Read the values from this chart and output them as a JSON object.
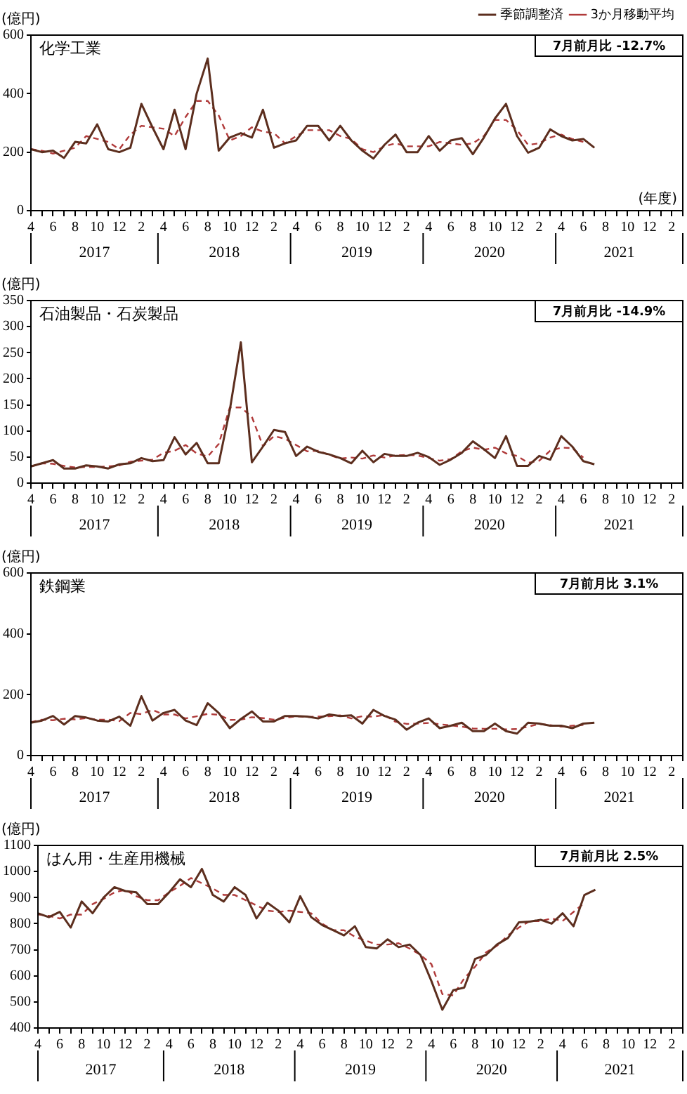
{
  "chart_data": [
    {
      "type": "line",
      "title": "化学工業",
      "ylabel": "(億円)",
      "xlabel": "(年度)",
      "legend": "top right",
      "ylim": [
        0,
        600
      ],
      "yticks": [
        0,
        200,
        400,
        600
      ],
      "categories": [
        "4",
        null,
        "6",
        null,
        "8",
        null,
        "10",
        null,
        "12",
        null,
        "2",
        null,
        "4",
        null,
        "6",
        null,
        "8",
        null,
        "10",
        null,
        "12",
        null,
        "2",
        null,
        "4",
        null,
        "6",
        null,
        "8",
        null,
        "10",
        null,
        "12",
        null,
        "2",
        null,
        "4",
        null,
        "6",
        null,
        "8",
        null,
        "10",
        null,
        "12",
        null,
        "2",
        null,
        "4",
        null,
        "6",
        null,
        "8",
        null,
        "10",
        null,
        "12",
        null,
        "2",
        null
      ],
      "annotations": [
        "7月前月比 -12.7%",
        "2017",
        "2018",
        "2019",
        "2020",
        "2021"
      ],
      "series": [
        {
          "name": "季節調整済",
          "color": "#5c2e1e",
          "line_style": "solid",
          "values": [
            210,
            200,
            205,
            180,
            235,
            230,
            295,
            210,
            200,
            215,
            365,
            285,
            210,
            345,
            210,
            400,
            520,
            205,
            250,
            265,
            250,
            345,
            215,
            230,
            240,
            290,
            290,
            240,
            290,
            240,
            205,
            178,
            225,
            260,
            200,
            200,
            255,
            205,
            240,
            248,
            193,
            250,
            315,
            365,
            255,
            198,
            215,
            278,
            255,
            240,
            245,
            215,
            null,
            null,
            null,
            null,
            null,
            null,
            null,
            null
          ]
        },
        {
          "name": "3か月移動平均",
          "color": "#b03a3a",
          "line_style": "dashed",
          "values": [
            210,
            205,
            195,
            205,
            215,
            255,
            245,
            235,
            210,
            260,
            290,
            285,
            280,
            255,
            320,
            375,
            375,
            325,
            240,
            255,
            285,
            270,
            265,
            230,
            255,
            275,
            275,
            275,
            255,
            245,
            210,
            200,
            220,
            230,
            220,
            220,
            220,
            235,
            230,
            225,
            230,
            255,
            310,
            310,
            275,
            225,
            230,
            250,
            260,
            245,
            235,
            null,
            null,
            null,
            null,
            null,
            null,
            null,
            null,
            null
          ]
        }
      ]
    },
    {
      "type": "line",
      "title": "石油製品・石炭製品",
      "ylabel": "(億円)",
      "ylim": [
        0,
        350
      ],
      "yticks": [
        0,
        50,
        100,
        150,
        200,
        250,
        300,
        350
      ],
      "categories": [
        "4",
        null,
        "6",
        null,
        "8",
        null,
        "10",
        null,
        "12",
        null,
        "2",
        null,
        "4",
        null,
        "6",
        null,
        "8",
        null,
        "10",
        null,
        "12",
        null,
        "2",
        null,
        "4",
        null,
        "6",
        null,
        "8",
        null,
        "10",
        null,
        "12",
        null,
        "2",
        null,
        "4",
        null,
        "6",
        null,
        "8",
        null,
        "10",
        null,
        "12",
        null,
        "2",
        null,
        "4",
        null,
        "6",
        null,
        "8",
        null,
        "10",
        null,
        "12",
        null,
        "2",
        null
      ],
      "annotations": [
        "7月前月比 -14.9%",
        "2017",
        "2018",
        "2019",
        "2020",
        "2021"
      ],
      "series": [
        {
          "color": "#5c2e1e",
          "line_style": "solid",
          "values": [
            32,
            38,
            44,
            28,
            28,
            34,
            32,
            28,
            36,
            38,
            48,
            42,
            44,
            88,
            55,
            77,
            38,
            38,
            140,
            270,
            40,
            70,
            102,
            98,
            52,
            70,
            60,
            55,
            48,
            38,
            62,
            40,
            56,
            52,
            52,
            58,
            50,
            35,
            45,
            58,
            80,
            65,
            48,
            90,
            33,
            33,
            52,
            45,
            90,
            70,
            42,
            36,
            null,
            null,
            null,
            null,
            null,
            null,
            null,
            null
          ]
        },
        {
          "color": "#b03a3a",
          "line_style": "dashed",
          "values": [
            32,
            38,
            37,
            33,
            30,
            31,
            31,
            32,
            34,
            41,
            43,
            45,
            58,
            62,
            73,
            57,
            51,
            75,
            145,
            145,
            127,
            71,
            90,
            85,
            73,
            61,
            62,
            54,
            47,
            49,
            47,
            53,
            49,
            53,
            54,
            53,
            48,
            43,
            46,
            61,
            68,
            64,
            68,
            57,
            52,
            39,
            43,
            62,
            68,
            67,
            49,
            null,
            null,
            null,
            null,
            null,
            null,
            null,
            null,
            null
          ]
        }
      ]
    },
    {
      "type": "line",
      "title": "鉄鋼業",
      "ylabel": "(億円)",
      "ylim": [
        0,
        600
      ],
      "yticks": [
        0,
        200,
        400,
        600
      ],
      "categories": [
        "4",
        null,
        "6",
        null,
        "8",
        null,
        "10",
        null,
        "12",
        null,
        "2",
        null,
        "4",
        null,
        "6",
        null,
        "8",
        null,
        "10",
        null,
        "12",
        null,
        "2",
        null,
        "4",
        null,
        "6",
        null,
        "8",
        null,
        "10",
        null,
        "12",
        null,
        "2",
        null,
        "4",
        null,
        "6",
        null,
        "8",
        null,
        "10",
        null,
        "12",
        null,
        "2",
        null,
        "4",
        null,
        "6",
        null,
        "8",
        null,
        "10",
        null,
        "12",
        null,
        "2",
        null
      ],
      "annotations": [
        "7月前月比 3.1%",
        "2017",
        "2018",
        "2019",
        "2020",
        "2021"
      ],
      "series": [
        {
          "color": "#5c2e1e",
          "line_style": "solid",
          "values": [
            108,
            115,
            130,
            102,
            130,
            125,
            115,
            112,
            128,
            98,
            195,
            115,
            140,
            150,
            115,
            100,
            172,
            140,
            90,
            120,
            145,
            112,
            112,
            130,
            130,
            128,
            122,
            135,
            130,
            132,
            105,
            150,
            130,
            118,
            85,
            108,
            122,
            90,
            98,
            108,
            80,
            80,
            105,
            80,
            72,
            108,
            105,
            98,
            98,
            90,
            105,
            108,
            null,
            null,
            null,
            null,
            null,
            null,
            null,
            null
          ]
        },
        {
          "color": "#b03a3a",
          "line_style": "dashed",
          "values": [
            110,
            118,
            116,
            121,
            119,
            123,
            118,
            118,
            113,
            140,
            136,
            150,
            135,
            135,
            122,
            129,
            137,
            134,
            117,
            118,
            126,
            123,
            118,
            124,
            129,
            127,
            128,
            129,
            132,
            122,
            129,
            128,
            133,
            111,
            104,
            105,
            107,
            103,
            99,
            95,
            89,
            88,
            88,
            86,
            87,
            95,
            104,
            100,
            95,
            98,
            101,
            null,
            null,
            null,
            null,
            null,
            null,
            null,
            null,
            null
          ]
        }
      ]
    },
    {
      "type": "line",
      "title": "はん用・生産用機械",
      "ylabel": "(億円)",
      "ylim": [
        400,
        1100
      ],
      "yticks": [
        400,
        500,
        600,
        700,
        800,
        900,
        1000,
        1100
      ],
      "categories": [
        "4",
        null,
        "6",
        null,
        "8",
        null,
        "10",
        null,
        "12",
        null,
        "2",
        null,
        "4",
        null,
        "6",
        null,
        "8",
        null,
        "10",
        null,
        "12",
        null,
        "2",
        null,
        "4",
        null,
        "6",
        null,
        "8",
        null,
        "10",
        null,
        "12",
        null,
        "2",
        null,
        "4",
        null,
        "6",
        null,
        "8",
        null,
        "10",
        null,
        "12",
        null,
        "2",
        null,
        "4",
        null,
        "6",
        null,
        "8",
        null,
        "10",
        null,
        "12",
        null,
        "2",
        null
      ],
      "annotations": [
        "7月前月比 2.5%",
        "2017",
        "2018",
        "2019",
        "2020",
        "2021"
      ],
      "series": [
        {
          "color": "#5c2e1e",
          "line_style": "solid",
          "values": [
            840,
            825,
            845,
            785,
            885,
            840,
            900,
            940,
            925,
            920,
            875,
            875,
            920,
            970,
            940,
            1010,
            910,
            885,
            940,
            910,
            820,
            880,
            850,
            805,
            905,
            825,
            795,
            775,
            755,
            790,
            710,
            705,
            740,
            710,
            720,
            680,
            580,
            470,
            545,
            555,
            665,
            680,
            720,
            745,
            805,
            808,
            815,
            800,
            840,
            790,
            910,
            930,
            null,
            null,
            null,
            null,
            null,
            null,
            null,
            null
          ]
        },
        {
          "color": "#b03a3a",
          "line_style": "dashed",
          "values": [
            835,
            830,
            820,
            835,
            835,
            875,
            895,
            920,
            930,
            905,
            890,
            890,
            920,
            945,
            975,
            955,
            935,
            910,
            910,
            890,
            870,
            850,
            845,
            850,
            845,
            840,
            800,
            775,
            775,
            750,
            735,
            720,
            720,
            725,
            705,
            680,
            645,
            530,
            525,
            590,
            635,
            690,
            715,
            755,
            785,
            810,
            810,
            820,
            810,
            845,
            880,
            null,
            null,
            null,
            null,
            null,
            null,
            null,
            null,
            null
          ]
        }
      ]
    }
  ]
}
